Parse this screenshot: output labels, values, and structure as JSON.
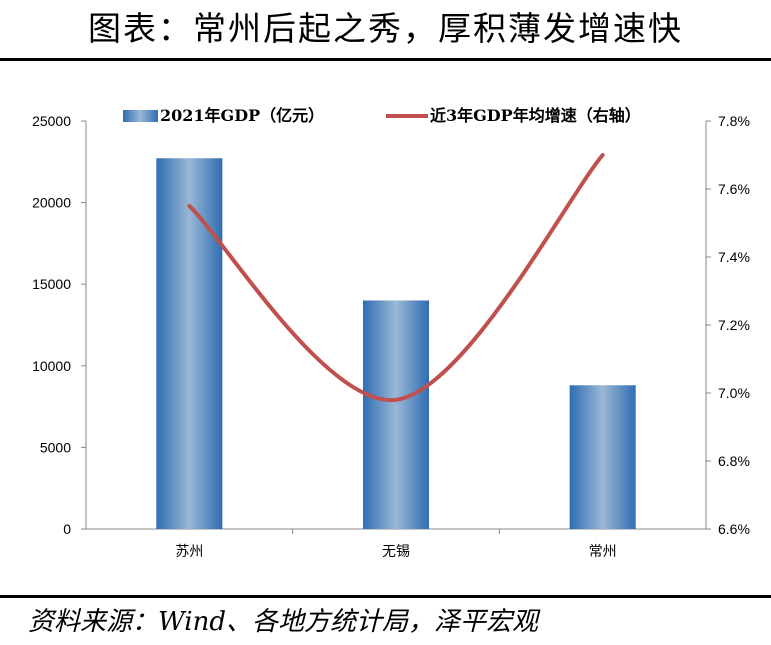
{
  "page": {
    "title": "图表：常州后起之秀，厚积薄发增速快",
    "source": "资料来源：Wind、各地方统计局，泽平宏观"
  },
  "chart_data": {
    "type": "bar",
    "categories": [
      "苏州",
      "无锡",
      "常州"
    ],
    "series": [
      {
        "name": "2021年GDP（亿元）",
        "kind": "bar",
        "axis": "left",
        "values": [
          22718,
          14003,
          8808
        ]
      },
      {
        "name": "近3年GDP年均增速（右轴）",
        "kind": "line",
        "axis": "right",
        "values": [
          7.55,
          6.98,
          7.7
        ]
      }
    ],
    "y_left": {
      "min": 0,
      "max": 25000,
      "ticks": [
        "0",
        "5000",
        "10000",
        "15000",
        "20000",
        "25000"
      ]
    },
    "y_right": {
      "min": 6.6,
      "max": 7.8,
      "ticks": [
        "6.6%",
        "6.8%",
        "7.0%",
        "7.2%",
        "7.4%",
        "7.6%",
        "7.8%"
      ]
    },
    "grid": false,
    "legend": "top",
    "colors": {
      "bar_edge": "#2f6db3",
      "bar_center": "#9ab8d4",
      "line": "#c0504d"
    }
  }
}
